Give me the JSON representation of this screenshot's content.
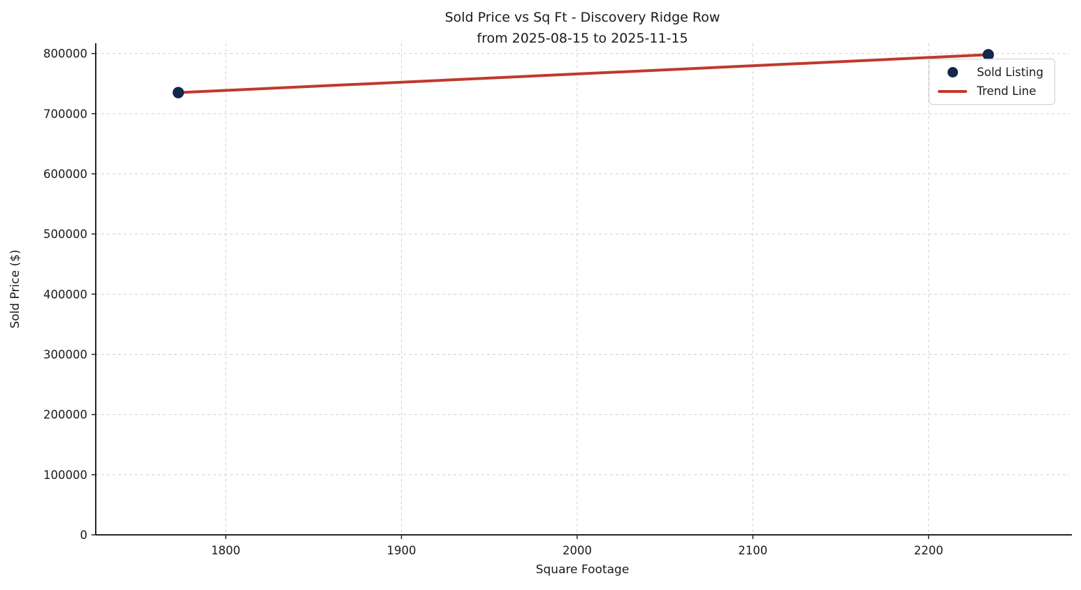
{
  "chart_data": {
    "type": "scatter",
    "title_line1": "Sold Price vs Sq Ft - Discovery Ridge Row",
    "title_line2": "from 2025-08-15 to 2025-11-15",
    "xlabel": "Square Footage",
    "ylabel": "Sold Price ($)",
    "xlim": [
      1726,
      2280
    ],
    "ylim": [
      0,
      817000
    ],
    "x_ticks": [
      1800,
      1900,
      2000,
      2100,
      2200
    ],
    "y_ticks": [
      0,
      100000,
      200000,
      300000,
      400000,
      500000,
      600000,
      700000,
      800000
    ],
    "grid": "dashed both axes",
    "legend_position": "upper right",
    "series": [
      {
        "name": "Sold Listing",
        "type": "scatter",
        "color": "#13294B",
        "edge_color": "#0E1F3A",
        "points": [
          {
            "sqft": 1773,
            "price": 735000
          },
          {
            "sqft": 2234,
            "price": 798000
          }
        ]
      },
      {
        "name": "Trend Line",
        "type": "line",
        "color": "#C0392B",
        "points": [
          {
            "sqft": 1773,
            "price": 735000
          },
          {
            "sqft": 2234,
            "price": 798000
          }
        ]
      }
    ],
    "legend": {
      "entries": [
        {
          "label": "Sold Listing",
          "marker": "dot",
          "color": "#13294B"
        },
        {
          "label": "Trend Line",
          "marker": "line",
          "color": "#C0392B"
        }
      ]
    },
    "style": {
      "grid_color": "#cfcfcf",
      "spine_color": "#262626",
      "text_color": "#1a1a1a",
      "background": "#ffffff"
    }
  }
}
